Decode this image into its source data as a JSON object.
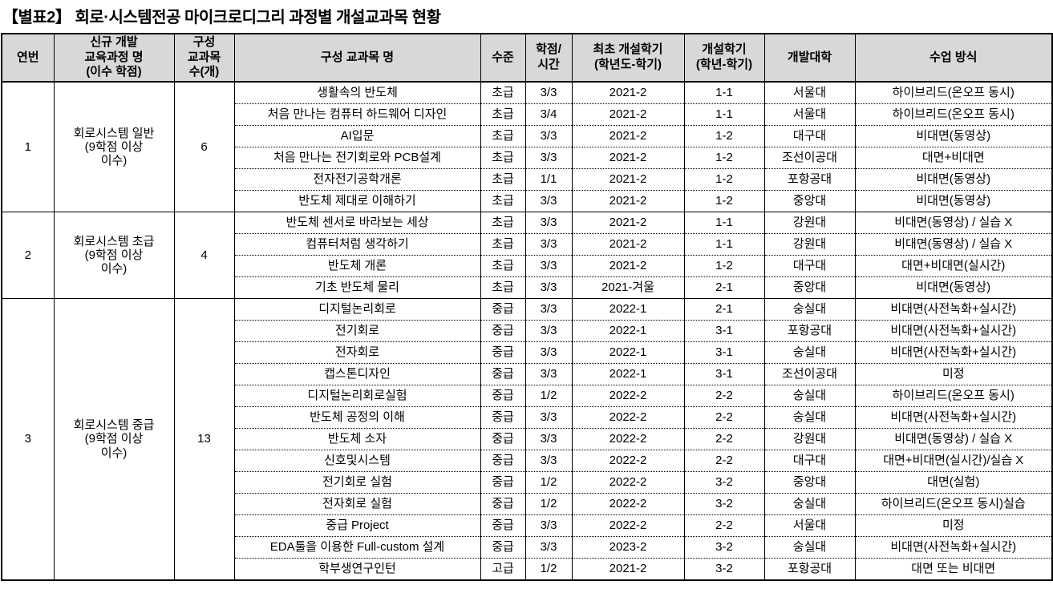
{
  "title": "【별표2】 회로·시스템전공 마이크로디그리 과정별 개설교과목 현황",
  "colors": {
    "header_bg": "#d8d8d8",
    "border": "#000000",
    "text": "#000000"
  },
  "table": {
    "headers": [
      "연번",
      "신규 개발\n교육과정 명\n(이수 학점)",
      "구성\n교과목\n수(개)",
      "구성 교과목 명",
      "수준",
      "학점/\n시간",
      "최초 개설학기\n(학년도-학기)",
      "개설학기\n(학년-학기)",
      "개발대학",
      "수업 방식"
    ],
    "groups": [
      {
        "no": "1",
        "program": "회로시스템 일반\n(9학점 이상\n이수)",
        "count": "6",
        "courses": [
          [
            "생활속의 반도체",
            "초급",
            "3/3",
            "2021-2",
            "1-1",
            "서울대",
            "하이브리드(온오프 동시)"
          ],
          [
            "처음 만나는 컴퓨터 하드웨어 디자인",
            "초급",
            "3/4",
            "2021-2",
            "1-1",
            "서울대",
            "하이브리드(온오프 동시)"
          ],
          [
            "AI입문",
            "초급",
            "3/3",
            "2021-2",
            "1-2",
            "대구대",
            "비대면(동영상)"
          ],
          [
            "처음 만나는 전기회로와 PCB설계",
            "초급",
            "3/3",
            "2021-2",
            "1-2",
            "조선이공대",
            "대면+비대면"
          ],
          [
            "전자전기공학개론",
            "초급",
            "1/1",
            "2021-2",
            "1-2",
            "포항공대",
            "비대면(동영상)"
          ],
          [
            "반도체 제대로 이해하기",
            "초급",
            "3/3",
            "2021-2",
            "1-2",
            "중앙대",
            "비대면(동영상)"
          ]
        ]
      },
      {
        "no": "2",
        "program": "회로시스템 초급\n(9학점 이상\n이수)",
        "count": "4",
        "courses": [
          [
            "반도체 센서로 바라보는 세상",
            "초급",
            "3/3",
            "2021-2",
            "1-1",
            "강원대",
            "비대면(동영상) / 실습 X"
          ],
          [
            "컴퓨터처럼 생각하기",
            "초급",
            "3/3",
            "2021-2",
            "1-1",
            "강원대",
            "비대면(동영상) / 실습 X"
          ],
          [
            "반도체 개론",
            "초급",
            "3/3",
            "2021-2",
            "1-2",
            "대구대",
            "대면+비대면(실시간)"
          ],
          [
            "기초 반도체 물리",
            "초급",
            "3/3",
            "2021-겨울",
            "2-1",
            "중앙대",
            "비대면(동영상)"
          ]
        ]
      },
      {
        "no": "3",
        "program": "회로시스템 중급\n(9학점 이상\n이수)",
        "count": "13",
        "courses": [
          [
            "디지털논리회로",
            "중급",
            "3/3",
            "2022-1",
            "2-1",
            "숭실대",
            "비대면(사전녹화+실시간)"
          ],
          [
            "전기회로",
            "중급",
            "3/3",
            "2022-1",
            "3-1",
            "포항공대",
            "비대면(사전녹화+실시간)"
          ],
          [
            "전자회로",
            "중급",
            "3/3",
            "2022-1",
            "3-1",
            "숭실대",
            "비대면(사전녹화+실시간)"
          ],
          [
            "캡스톤디자인",
            "중급",
            "3/3",
            "2022-1",
            "3-1",
            "조선이공대",
            "미정"
          ],
          [
            "디지털논리회로실험",
            "중급",
            "1/2",
            "2022-2",
            "2-2",
            "숭실대",
            "하이브리드(온오프 동시)"
          ],
          [
            "반도체 공정의 이해",
            "중급",
            "3/3",
            "2022-2",
            "2-2",
            "숭실대",
            "비대면(사전녹화+실시간)"
          ],
          [
            "반도체 소자",
            "중급",
            "3/3",
            "2022-2",
            "2-2",
            "강원대",
            "비대면(동영상) / 실습 X"
          ],
          [
            "신호및시스템",
            "중급",
            "3/3",
            "2022-2",
            "2-2",
            "대구대",
            "대면+비대면(실시간)/실습 X"
          ],
          [
            "전기회로 실험",
            "중급",
            "1/2",
            "2022-2",
            "3-2",
            "중앙대",
            "대면(실험)"
          ],
          [
            "전자회로 실험",
            "중급",
            "1/2",
            "2022-2",
            "3-2",
            "숭실대",
            "하이브리드(온오프 동시)실습"
          ],
          [
            "중급 Project",
            "중급",
            "3/3",
            "2022-2",
            "2-2",
            "서울대",
            "미정"
          ],
          [
            "EDA툴을 이용한 Full-custom 설계",
            "중급",
            "3/3",
            "2023-2",
            "3-2",
            "숭실대",
            "비대면(사전녹화+실시간)"
          ],
          [
            "학부생연구인턴",
            "고급",
            "1/2",
            "2021-2",
            "3-2",
            "포항공대",
            "대면 또는 비대면"
          ]
        ]
      }
    ]
  }
}
